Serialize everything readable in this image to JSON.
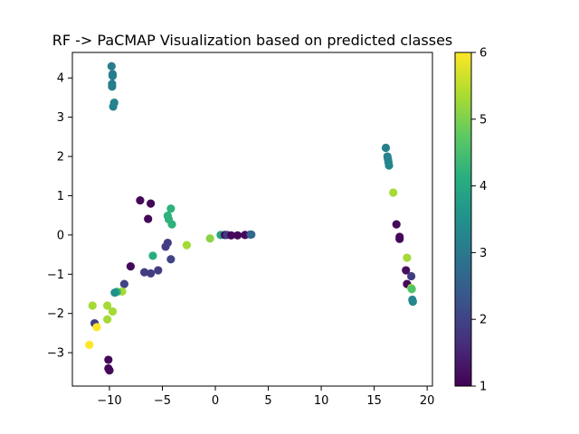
{
  "chart_data": {
    "type": "scatter",
    "title": "RF -> PaCMAP Visualization based on predicted classes",
    "xlabel": "",
    "ylabel": "",
    "xlim": [
      -13.5,
      20.5
    ],
    "ylim": [
      -3.85,
      4.65
    ],
    "xticks": [
      -10,
      -5,
      0,
      5,
      10,
      15,
      20
    ],
    "yticks": [
      -3,
      -2,
      -1,
      0,
      1,
      2,
      3,
      4
    ],
    "grid": false,
    "legend": "none",
    "colorbar": {
      "min": 1,
      "max": 6,
      "ticks": [
        1,
        2,
        3,
        4,
        5,
        6
      ],
      "colormap": "viridis"
    },
    "points": [
      {
        "x": -9.8,
        "y": 4.3,
        "c": 3.1
      },
      {
        "x": -9.7,
        "y": 4.1,
        "c": 3.1
      },
      {
        "x": -9.7,
        "y": 4.05,
        "c": 3.1
      },
      {
        "x": -9.75,
        "y": 3.85,
        "c": 3.1
      },
      {
        "x": -9.75,
        "y": 3.78,
        "c": 3.1
      },
      {
        "x": -9.55,
        "y": 3.37,
        "c": 3.2
      },
      {
        "x": -9.65,
        "y": 3.27,
        "c": 3.2
      },
      {
        "x": 16.1,
        "y": 2.22,
        "c": 3.15
      },
      {
        "x": 16.25,
        "y": 2.0,
        "c": 3.2
      },
      {
        "x": 16.3,
        "y": 1.93,
        "c": 3.2
      },
      {
        "x": 16.35,
        "y": 1.85,
        "c": 3.2
      },
      {
        "x": 16.4,
        "y": 1.77,
        "c": 3.25
      },
      {
        "x": 16.8,
        "y": 1.08,
        "c": 5.3
      },
      {
        "x": 17.1,
        "y": 0.27,
        "c": 1.1
      },
      {
        "x": 17.4,
        "y": -0.05,
        "c": 1.1
      },
      {
        "x": 17.4,
        "y": -0.1,
        "c": 1.1
      },
      {
        "x": 18.1,
        "y": -0.58,
        "c": 5.3
      },
      {
        "x": 18.0,
        "y": -0.9,
        "c": 1.2
      },
      {
        "x": 18.5,
        "y": -1.05,
        "c": 1.9
      },
      {
        "x": 18.1,
        "y": -1.25,
        "c": 1.1
      },
      {
        "x": 18.5,
        "y": -1.35,
        "c": 5.3
      },
      {
        "x": 18.55,
        "y": -1.38,
        "c": 4.6
      },
      {
        "x": 18.6,
        "y": -1.65,
        "c": 3.3
      },
      {
        "x": 18.65,
        "y": -1.7,
        "c": 3.3
      },
      {
        "x": -7.1,
        "y": 0.88,
        "c": 1.1
      },
      {
        "x": -6.1,
        "y": 0.8,
        "c": 1.1
      },
      {
        "x": -6.35,
        "y": 0.41,
        "c": 1.1
      },
      {
        "x": -4.2,
        "y": 0.67,
        "c": 4.2
      },
      {
        "x": -4.5,
        "y": 0.49,
        "c": 4.2
      },
      {
        "x": -4.4,
        "y": 0.4,
        "c": 4.2
      },
      {
        "x": -4.1,
        "y": 0.27,
        "c": 4.2
      },
      {
        "x": -4.5,
        "y": -0.2,
        "c": 1.9
      },
      {
        "x": -4.7,
        "y": -0.3,
        "c": 1.9
      },
      {
        "x": -2.7,
        "y": -0.26,
        "c": 5.3
      },
      {
        "x": -0.5,
        "y": -0.09,
        "c": 5.1
      },
      {
        "x": -4.2,
        "y": -0.62,
        "c": 2.0
      },
      {
        "x": -5.9,
        "y": -0.53,
        "c": 4.1
      },
      {
        "x": -8.0,
        "y": -0.8,
        "c": 1.1
      },
      {
        "x": -6.7,
        "y": -0.95,
        "c": 1.9
      },
      {
        "x": -6.1,
        "y": -0.98,
        "c": 1.9
      },
      {
        "x": -5.4,
        "y": -0.9,
        "c": 1.9
      },
      {
        "x": -8.6,
        "y": -1.25,
        "c": 2.0
      },
      {
        "x": -8.8,
        "y": -1.44,
        "c": 5.3
      },
      {
        "x": -9.3,
        "y": -1.45,
        "c": 4.2
      },
      {
        "x": -9.5,
        "y": -1.47,
        "c": 3.5
      },
      {
        "x": 0.5,
        "y": 0.0,
        "c": 3.9
      },
      {
        "x": 0.9,
        "y": 0.0,
        "c": 1.1
      },
      {
        "x": 1.1,
        "y": 0.0,
        "c": 1.9
      },
      {
        "x": 1.5,
        "y": -0.01,
        "c": 1.1
      },
      {
        "x": 2.1,
        "y": -0.01,
        "c": 1.1
      },
      {
        "x": 2.8,
        "y": 0.0,
        "c": 1.1
      },
      {
        "x": 3.3,
        "y": 0.01,
        "c": 1.9
      },
      {
        "x": 3.4,
        "y": 0.01,
        "c": 2.7
      },
      {
        "x": -11.6,
        "y": -1.8,
        "c": 5.3
      },
      {
        "x": -10.2,
        "y": -1.8,
        "c": 5.3
      },
      {
        "x": -9.7,
        "y": -1.95,
        "c": 5.3
      },
      {
        "x": -10.2,
        "y": -2.15,
        "c": 5.3
      },
      {
        "x": -11.4,
        "y": -2.25,
        "c": 1.9
      },
      {
        "x": -11.2,
        "y": -2.35,
        "c": 6.0
      },
      {
        "x": -11.9,
        "y": -2.8,
        "c": 6.0
      },
      {
        "x": -10.1,
        "y": -3.18,
        "c": 1.1
      },
      {
        "x": -10.1,
        "y": -3.4,
        "c": 1.1
      },
      {
        "x": -10.0,
        "y": -3.45,
        "c": 1.1
      }
    ]
  }
}
